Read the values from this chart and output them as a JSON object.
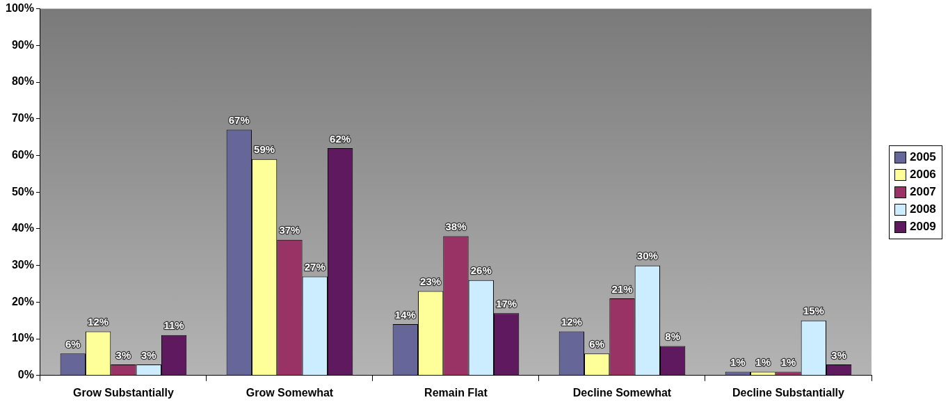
{
  "chart_data": {
    "type": "bar",
    "categories": [
      "Grow Substantially",
      "Grow Somewhat",
      "Remain Flat",
      "Decline Somewhat",
      "Decline Substantially"
    ],
    "series": [
      {
        "name": "2005",
        "color": "#666699",
        "values": [
          6,
          67,
          14,
          12,
          1
        ],
        "value_labels": [
          "6%",
          "67%",
          "14%",
          "12%",
          "1%"
        ]
      },
      {
        "name": "2006",
        "color": "#ffff99",
        "values": [
          12,
          59,
          23,
          6,
          1
        ],
        "value_labels": [
          "12%",
          "59%",
          "23%",
          "6%",
          "1%"
        ]
      },
      {
        "name": "2007",
        "color": "#993366",
        "values": [
          3,
          37,
          38,
          21,
          1
        ],
        "value_labels": [
          "3%",
          "37%",
          "38%",
          "21%",
          "1%"
        ]
      },
      {
        "name": "2008",
        "color": "#ccecff",
        "values": [
          3,
          27,
          26,
          30,
          15
        ],
        "value_labels": [
          "3%",
          "27%",
          "26%",
          "30%",
          "15%"
        ]
      },
      {
        "name": "2009",
        "color": "#5f1a5f",
        "values": [
          11,
          62,
          17,
          8,
          3
        ],
        "value_labels": [
          "11%",
          "62%",
          "17%",
          "8%",
          "3%"
        ]
      }
    ],
    "ylim": [
      0,
      100
    ],
    "yticks": [
      {
        "value": 0,
        "label": "0%"
      },
      {
        "value": 10,
        "label": "10%"
      },
      {
        "value": 20,
        "label": "20%"
      },
      {
        "value": 30,
        "label": "30%"
      },
      {
        "value": 40,
        "label": "40%"
      },
      {
        "value": 50,
        "label": "50%"
      },
      {
        "value": 60,
        "label": "60%"
      },
      {
        "value": 70,
        "label": "70%"
      },
      {
        "value": 80,
        "label": "80%"
      },
      {
        "value": 90,
        "label": "90%"
      },
      {
        "value": 100,
        "label": "100%"
      }
    ],
    "legend": "right"
  }
}
